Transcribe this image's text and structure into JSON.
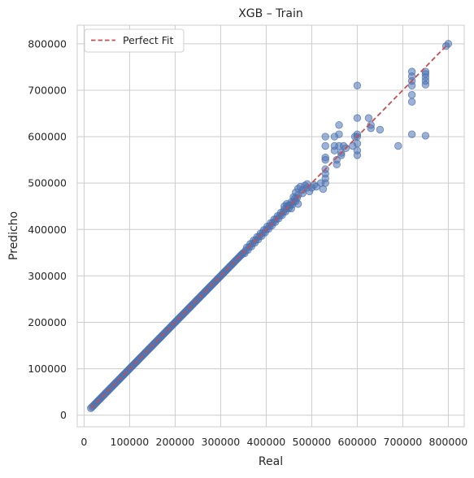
{
  "chart_data": {
    "type": "scatter",
    "title": "XGB – Train",
    "xlabel": "Real",
    "ylabel": "Predicho",
    "xlim": [
      -15000,
      835000
    ],
    "ylim": [
      -25000,
      840000
    ],
    "xticks": [
      0,
      100000,
      200000,
      300000,
      400000,
      500000,
      600000,
      700000,
      800000
    ],
    "yticks": [
      0,
      100000,
      200000,
      300000,
      400000,
      500000,
      600000,
      700000,
      800000
    ],
    "x_tick_labels": [
      "0",
      "100000",
      "200000",
      "300000",
      "400000",
      "500000",
      "600000",
      "700000",
      "800000"
    ],
    "y_tick_labels": [
      "0",
      "100000",
      "200000",
      "300000",
      "400000",
      "500000",
      "600000",
      "700000",
      "800000"
    ],
    "grid": true,
    "legend": {
      "position": "top-left",
      "entries": [
        "Perfect Fit"
      ]
    },
    "colors": {
      "points": "#4c72b0",
      "fit_line": "#c44e52",
      "grid": "#cccccc"
    },
    "reference_line": {
      "name": "Perfect Fit",
      "from": [
        15000,
        15000
      ],
      "to": [
        800000,
        800000
      ],
      "style": "dashed"
    },
    "points_diagonal_range": [
      15000,
      470000
    ],
    "points": [
      [
        440000,
        450000
      ],
      [
        445000,
        455000
      ],
      [
        450000,
        452000
      ],
      [
        455000,
        445000
      ],
      [
        460000,
        470000
      ],
      [
        465000,
        480000
      ],
      [
        470000,
        488000
      ],
      [
        470000,
        455000
      ],
      [
        475000,
        492000
      ],
      [
        480000,
        485000
      ],
      [
        485000,
        495000
      ],
      [
        490000,
        490000
      ],
      [
        495000,
        482000
      ],
      [
        500000,
        490000
      ],
      [
        505000,
        496000
      ],
      [
        510000,
        492000
      ],
      [
        520000,
        500000
      ],
      [
        525000,
        487000
      ],
      [
        480000,
        478000
      ],
      [
        490000,
        498000
      ],
      [
        530000,
        600000
      ],
      [
        530000,
        580000
      ],
      [
        530000,
        555000
      ],
      [
        530000,
        550000
      ],
      [
        530000,
        530000
      ],
      [
        530000,
        520000
      ],
      [
        530000,
        510000
      ],
      [
        530000,
        500000
      ],
      [
        550000,
        600000
      ],
      [
        550000,
        580000
      ],
      [
        550000,
        570000
      ],
      [
        555000,
        550000
      ],
      [
        555000,
        540000
      ],
      [
        560000,
        625000
      ],
      [
        560000,
        605000
      ],
      [
        560000,
        580000
      ],
      [
        565000,
        565000
      ],
      [
        565000,
        560000
      ],
      [
        570000,
        580000
      ],
      [
        575000,
        575000
      ],
      [
        590000,
        580000
      ],
      [
        595000,
        600000
      ],
      [
        600000,
        710000
      ],
      [
        600000,
        640000
      ],
      [
        600000,
        605000
      ],
      [
        600000,
        600000
      ],
      [
        600000,
        585000
      ],
      [
        600000,
        570000
      ],
      [
        600000,
        560000
      ],
      [
        625000,
        640000
      ],
      [
        630000,
        625000
      ],
      [
        630000,
        618000
      ],
      [
        650000,
        615000
      ],
      [
        690000,
        580000
      ],
      [
        720000,
        740000
      ],
      [
        720000,
        730000
      ],
      [
        720000,
        720000
      ],
      [
        720000,
        710000
      ],
      [
        720000,
        690000
      ],
      [
        720000,
        675000
      ],
      [
        720000,
        605000
      ],
      [
        750000,
        740000
      ],
      [
        750000,
        735000
      ],
      [
        750000,
        728000
      ],
      [
        750000,
        720000
      ],
      [
        750000,
        712000
      ],
      [
        750000,
        602000
      ],
      [
        795000,
        795000
      ],
      [
        800000,
        800000
      ]
    ]
  }
}
